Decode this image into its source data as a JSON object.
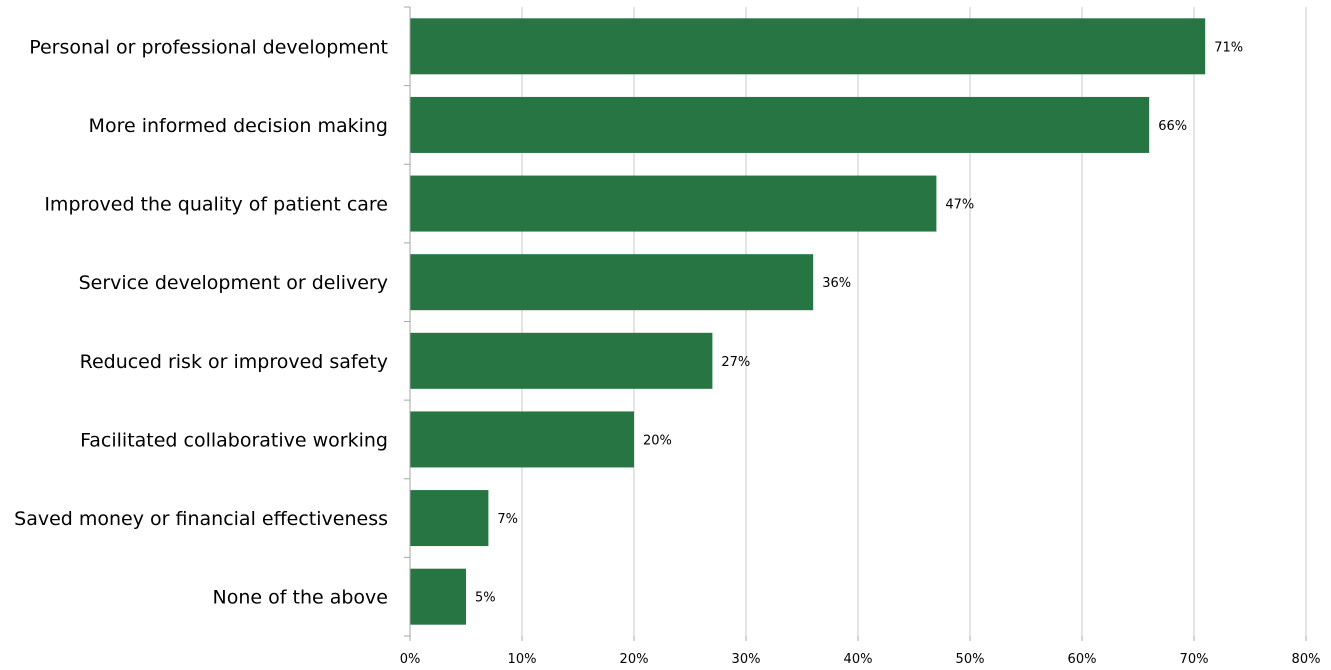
{
  "chart_data": {
    "type": "bar",
    "orientation": "horizontal",
    "title": "",
    "xlabel": "",
    "ylabel": "",
    "categories": [
      "Personal or professional development",
      "More informed decision making",
      "Improved the quality of patient care",
      "Service development or delivery",
      "Reduced risk or improved safety",
      "Facilitated collaborative working",
      "Saved money or financial effectiveness",
      "None of the above"
    ],
    "values": [
      71,
      66,
      47,
      36,
      27,
      20,
      7,
      5
    ],
    "value_labels": [
      "71%",
      "66%",
      "47%",
      "36%",
      "27%",
      "20%",
      "7%",
      "5%"
    ],
    "xlim": [
      0,
      80
    ],
    "x_ticks": [
      0,
      10,
      20,
      30,
      40,
      50,
      60,
      70,
      80
    ],
    "x_tick_labels": [
      "0%",
      "10%",
      "20%",
      "30%",
      "40%",
      "50%",
      "60%",
      "70%",
      "80%"
    ],
    "grid": "vertical",
    "legend": "none",
    "colors": {
      "bar": "#267542",
      "grid": "#c8c8c8",
      "axis": "#a6a6a6"
    }
  }
}
